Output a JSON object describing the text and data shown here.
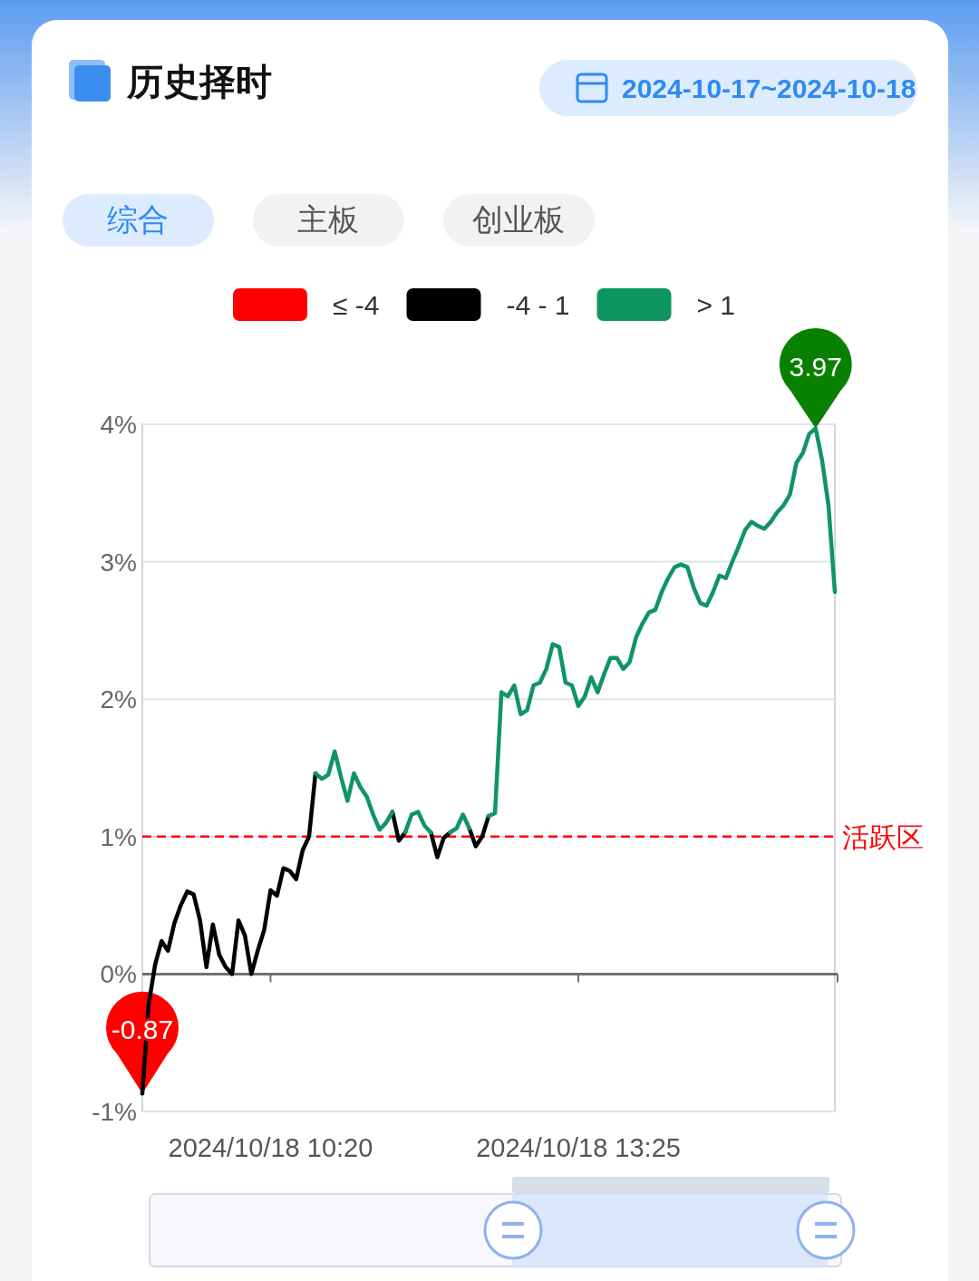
{
  "chart_data": {
    "type": "line",
    "title": "历史择时",
    "subtitle": "2024-10-17~2024-10-18",
    "annotations": [
      "综合",
      "主板",
      "创业板",
      {
        "text": "3.97",
        "y": 3.97
      },
      {
        "text": "-0.87",
        "y": -0.87
      }
    ],
    "categories": [
      null,
      null,
      null,
      null,
      null,
      null,
      null,
      null,
      null,
      null,
      null,
      null,
      null,
      null,
      null,
      null,
      null,
      null,
      null,
      null,
      "2024/10/18 10:20",
      null,
      null,
      null,
      null,
      null,
      null,
      null,
      null,
      null,
      null,
      null,
      null,
      null,
      null,
      null,
      null,
      null,
      null,
      null,
      null,
      null,
      null,
      null,
      null,
      null,
      null,
      null,
      null,
      null,
      null,
      null,
      null,
      null,
      null,
      null,
      null,
      null,
      null,
      null,
      null,
      null,
      null,
      null,
      null,
      null,
      null,
      null,
      "2024/10/18 13:25",
      null,
      null,
      null,
      null,
      null,
      null,
      null,
      null,
      null,
      null,
      null,
      null,
      null,
      null,
      null,
      null,
      null,
      null,
      null,
      null,
      null,
      null,
      null,
      null,
      null,
      null,
      null,
      null,
      null,
      null,
      null,
      null,
      null,
      null,
      null,
      null,
      null,
      null,
      null,
      null
    ],
    "series": [
      {
        "name": "≤ -4",
        "color": "#ff0000",
        "values": [
          null,
          null,
          null,
          null,
          null,
          null,
          null,
          null,
          null,
          null,
          null,
          null,
          null,
          null,
          null,
          null,
          null,
          null,
          null,
          null,
          null,
          null,
          null,
          null,
          null,
          null,
          null,
          null,
          null,
          null,
          null,
          null,
          null,
          null,
          null,
          null,
          null,
          null,
          null,
          null,
          null,
          null,
          null,
          null,
          null,
          null,
          null,
          null,
          null,
          null,
          null,
          null,
          null,
          null,
          null,
          null,
          null,
          null,
          null,
          null,
          null,
          null,
          null,
          null,
          null,
          null,
          null,
          null,
          null,
          null,
          null,
          null,
          null,
          null,
          null,
          null,
          null,
          null,
          null,
          null,
          null,
          null,
          null,
          null,
          null,
          null,
          null,
          null,
          null,
          null,
          null,
          null,
          null,
          null,
          null,
          null,
          null,
          null,
          null,
          null,
          null,
          null,
          null,
          null,
          null,
          null,
          null,
          null,
          null
        ]
      },
      {
        "name": "-4 - 1",
        "color": "#000000",
        "values": [
          -0.87,
          -0.22,
          0.07,
          0.24,
          0.17,
          0.37,
          0.5,
          0.6,
          0.58,
          0.39,
          0.05,
          0.36,
          0.14,
          0.05,
          0.0,
          0.39,
          0.28,
          0.0,
          0.17,
          0.32,
          0.61,
          0.57,
          0.77,
          0.75,
          0.69,
          0.9,
          1.0,
          1.46,
          null,
          null,
          null,
          null,
          null,
          null,
          null,
          null,
          null,
          null,
          null,
          1.18,
          0.97,
          1.03,
          null,
          null,
          null,
          1.03,
          0.85,
          0.99,
          1.03,
          null,
          null,
          1.06,
          0.93,
          1.0,
          1.15,
          null,
          null,
          null,
          null,
          null,
          null,
          null,
          null,
          null,
          null,
          null,
          null,
          null,
          null,
          null,
          null,
          null,
          null,
          null,
          null,
          null,
          null,
          null,
          null,
          null,
          null,
          null,
          null,
          null,
          null,
          null,
          null,
          null,
          null,
          null,
          null,
          null,
          null,
          null,
          null,
          null,
          null,
          null,
          null,
          null,
          null,
          null,
          null,
          null,
          null,
          null,
          null,
          null,
          null
        ]
      },
      {
        "name": "> 1",
        "color": "#0f9563",
        "values": [
          null,
          null,
          null,
          null,
          null,
          null,
          null,
          null,
          null,
          null,
          null,
          null,
          null,
          null,
          null,
          null,
          null,
          null,
          null,
          null,
          null,
          null,
          null,
          null,
          null,
          null,
          null,
          1.46,
          1.42,
          1.45,
          1.62,
          1.43,
          1.26,
          1.46,
          1.36,
          1.29,
          1.16,
          1.05,
          1.1,
          1.18,
          null,
          1.03,
          1.16,
          1.18,
          1.08,
          1.03,
          null,
          null,
          1.03,
          1.06,
          1.16,
          1.06,
          null,
          null,
          1.15,
          1.17,
          2.05,
          2.02,
          2.1,
          1.89,
          1.92,
          2.1,
          2.12,
          2.22,
          2.4,
          2.38,
          2.12,
          2.1,
          1.95,
          2.02,
          2.16,
          2.05,
          2.18,
          2.3,
          2.3,
          2.22,
          2.27,
          2.45,
          2.55,
          2.63,
          2.65,
          2.78,
          2.88,
          2.96,
          2.98,
          2.96,
          2.81,
          2.7,
          2.68,
          2.78,
          2.9,
          2.88,
          3.0,
          3.11,
          3.23,
          3.29,
          3.26,
          3.24,
          3.29,
          3.36,
          3.41,
          3.49,
          3.72,
          3.79,
          3.93,
          3.97,
          3.74,
          3.41,
          2.78
        ]
      }
    ],
    "ylim": [
      -1,
      4
    ],
    "yticks": [
      {
        "value": -1,
        "label": "-1%"
      },
      {
        "value": 0,
        "label": "0%"
      },
      {
        "value": 1,
        "label": "1%"
      },
      {
        "value": 2,
        "label": "2%"
      },
      {
        "value": 3,
        "label": "3%"
      },
      {
        "value": 4,
        "label": "4%"
      }
    ],
    "grid": "y",
    "legend": "top",
    "marker": "none",
    "line_style": "solid",
    "ref_lines": [
      {
        "axis": "y",
        "value": 1,
        "label": "活跃区",
        "color": "#ff0000",
        "line_style": "dashed"
      }
    ]
  }
}
